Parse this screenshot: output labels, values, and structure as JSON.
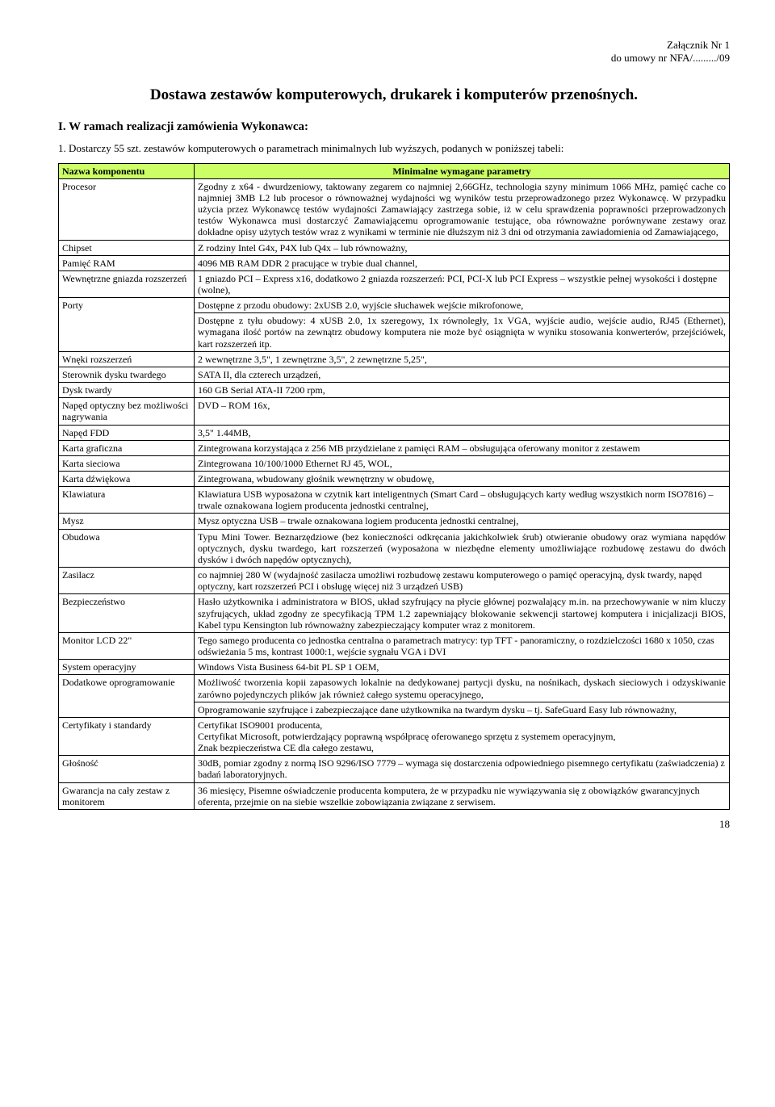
{
  "header": {
    "line1": "Załącznik Nr 1",
    "line2": "do umowy nr NFA/........./09"
  },
  "title": "Dostawa zestawów komputerowych, drukarek i komputerów przenośnych.",
  "section_i": "I. W ramach realizacji zamówienia Wykonawca:",
  "intro": "1. Dostarczy 55 szt. zestawów komputerowych o parametrach minimalnych lub wyższych, podanych w poniższej tabeli:",
  "table": {
    "header_a": "Nazwa komponentu",
    "header_b": "Minimalne wymagane parametry",
    "rows": [
      {
        "a": "Procesor",
        "b": "Zgodny z x64 - dwurdzeniowy, taktowany zegarem co najmniej 2,66GHz, technologia szyny minimum 1066 MHz, pamięć cache co najmniej 3MB L2 lub procesor o równoważnej wydajności wg wyników testu przeprowadzonego przez Wykonawcę. W przypadku użycia przez Wykonawcę testów wydajności Zamawiający zastrzega sobie, iż w celu sprawdzenia poprawności przeprowadzonych testów Wykonawca musi dostarczyć Zamawiającemu oprogramowanie testujące, oba równoważne porównywane zestawy oraz dokładne opisy użytych testów wraz z wynikami w terminie nie dłuższym niż 3 dni od otrzymania zawiadomienia od Zamawiającego,",
        "justify": true
      },
      {
        "a": "Chipset",
        "b": "Z rodziny Intel G4x, P4X lub Q4x – lub równoważny,"
      },
      {
        "a": "Pamięć RAM",
        "b": "4096 MB RAM DDR 2 pracujące w trybie dual channel,"
      },
      {
        "a": "Wewnętrzne gniazda rozszerzeń",
        "b": "1 gniazdo PCI – Express x16, dodatkowo 2 gniazda rozszerzeń: PCI, PCI-X lub PCI Express – wszystkie pełnej wysokości i dostępne (wolne),"
      },
      {
        "a": "Porty",
        "b": "Dostępne z przodu obudowy: 2xUSB 2.0, wyjście słuchawek wejście mikrofonowe,"
      },
      {
        "a": "",
        "b": "Dostępne z tyłu obudowy: 4 xUSB 2.0, 1x szeregowy, 1x równoległy, 1x VGA, wyjście audio, wejście audio, RJ45 (Ethernet), wymagana ilość portów na zewnątrz obudowy komputera nie może być osiągnięta w wyniku stosowania konwerterów, przejściówek, kart rozszerzeń itp.",
        "justify": true
      },
      {
        "a": "Wnęki rozszerzeń",
        "b": "2 wewnętrzne 3,5\", 1 zewnętrzne 3,5\", 2 zewnętrzne 5,25\","
      },
      {
        "a": "Sterownik dysku twardego",
        "b": "SATA II, dla czterech urządzeń,"
      },
      {
        "a": "Dysk twardy",
        "b": "160 GB Serial ATA-II 7200 rpm,"
      },
      {
        "a": "Napęd optyczny bez możliwości nagrywania",
        "b": "DVD – ROM 16x,"
      },
      {
        "a": "Napęd FDD",
        "b": "3,5\" 1.44MB,"
      },
      {
        "a": "Karta graficzna",
        "b": "Zintegrowana korzystająca z 256 MB przydzielane z pamięci RAM – obsługująca oferowany monitor z zestawem"
      },
      {
        "a": "Karta sieciowa",
        "b": "Zintegrowana 10/100/1000 Ethernet RJ 45, WOL,"
      },
      {
        "a": "Karta dźwiękowa",
        "b": "Zintegrowana, wbudowany głośnik wewnętrzny w obudowę,"
      },
      {
        "a": "Klawiatura",
        "b": "Klawiatura USB wyposażona w czytnik kart inteligentnych (Smart Card – obsługujących karty według wszystkich norm ISO7816) – trwale oznakowana logiem producenta jednostki centralnej,"
      },
      {
        "a": "Mysz",
        "b": "Mysz optyczna USB – trwale oznakowana logiem producenta jednostki centralnej,"
      },
      {
        "a": "Obudowa",
        "b": "Typu Mini Tower. Beznarzędziowe (bez konieczności odkręcania jakichkolwiek śrub) otwieranie obudowy oraz wymiana napędów optycznych, dysku twardego, kart rozszerzeń (wyposażona w niezbędne elementy umożliwiające rozbudowę zestawu do dwóch dysków i dwóch napędów optycznych),",
        "justify": true
      },
      {
        "a": "Zasilacz",
        "b": "co najmniej 280 W (wydajność zasilacza umożliwi rozbudowę zestawu komputerowego o pamięć operacyjną, dysk twardy, napęd optyczny, kart rozszerzeń PCI i obsługę więcej niż 3 urządzeń USB)"
      },
      {
        "a": "Bezpieczeństwo",
        "b": "Hasło użytkownika i administratora w BIOS, układ szyfrujący na płycie głównej pozwalający m.in. na przechowywanie w nim kluczy szyfrujących, układ zgodny ze specyfikacją TPM 1.2 zapewniający blokowanie sekwencji startowej komputera i inicjalizacji BIOS,  Kabel typu Kensington lub równoważny zabezpieczający komputer wraz z monitorem.",
        "justify": true
      },
      {
        "a": "Monitor LCD 22\"",
        "b": "Tego samego producenta co jednostka centralna o parametrach matrycy: typ TFT - panoramiczny, o rozdzielczości 1680 x 1050, czas odświeżania 5 ms, kontrast 1000:1, wejście sygnału VGA i DVI"
      },
      {
        "a": "System operacyjny",
        "b": "Windows Vista Business 64-bit PL SP 1 OEM,"
      },
      {
        "a": "Dodatkowe oprogramowanie",
        "b": "Możliwość tworzenia kopii zapasowych lokalnie na dedykowanej partycji dysku, na nośnikach, dyskach sieciowych i odzyskiwanie zarówno pojedynczych plików jak również całego systemu operacyjnego,",
        "justify": true
      },
      {
        "a": "",
        "b": "Oprogramowanie szyfrujące i zabezpieczające dane użytkownika na twardym dysku – tj. SafeGuard Easy lub równoważny,",
        "justify": true
      },
      {
        "a": "Certyfikaty i standardy",
        "b": "Certyfikat ISO9001 producenta,\nCertyfikat Microsoft, potwierdzający poprawną współpracę oferowanego sprzętu z systemem operacyjnym,\nZnak bezpieczeństwa CE dla całego zestawu,"
      },
      {
        "a": "Głośność",
        "b": "30dB, pomiar zgodny z normą ISO 9296/ISO 7779 – wymaga się dostarczenia odpowiedniego pisemnego certyfikatu (zaświadczenia) z badań laboratoryjnych."
      },
      {
        "a": "Gwarancja na cały zestaw z monitorem",
        "b": "36 miesięcy, Pisemne oświadczenie producenta komputera, że w przypadku nie wywiązywania się z obowiązków gwarancyjnych oferenta, przejmie on na siebie wszelkie zobowiązania związane z serwisem."
      }
    ]
  },
  "page_number": "18"
}
